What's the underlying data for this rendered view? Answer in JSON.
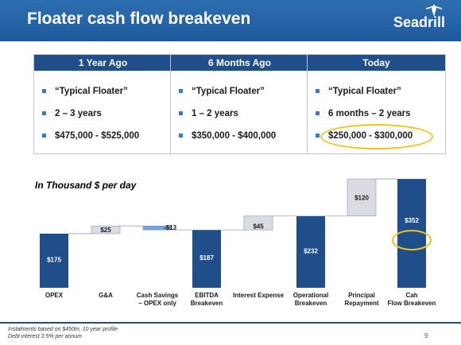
{
  "slide": {
    "title": "Floater cash flow breakeven",
    "logo": "Seadrill",
    "page_number": "9"
  },
  "boxes": [
    {
      "header": "1 Year Ago",
      "items": [
        "“Typical Floater”",
        "2 – 3 years",
        "$475,000 - $525,000"
      ]
    },
    {
      "header": "6 Months Ago",
      "items": [
        "“Typical Floater”",
        "1 – 2 years",
        "$350,000 - $400,000"
      ]
    },
    {
      "header": "Today",
      "items": [
        "“Typical Floater”",
        "6 months – 2 years",
        "$250,000 - $300,000"
      ]
    }
  ],
  "colors": {
    "header_bar": "#1f4e8a",
    "total_bar": "#1f4e8a",
    "delta_bar": "#d9dde3",
    "small_bar": "#6fa6d8",
    "highlight": "#f0c41c"
  },
  "chart_data": {
    "type": "bar",
    "subtitle": "In Thousand $ per day",
    "categories": [
      "OPEX",
      "G&A",
      "Cash Savings – OPEX only",
      "EBITDA Breakeven",
      "Interest Expense",
      "Operational Breakeven",
      "Principal Repayment",
      "Cah Flow Breakeven"
    ],
    "values": [
      175,
      25,
      -13,
      187,
      45,
      232,
      120,
      352
    ],
    "labels": [
      "$175",
      "$25",
      "-$13",
      "$187",
      "$45",
      "$232",
      "$120",
      "$352"
    ],
    "kinds": [
      "total",
      "delta",
      "delta",
      "total",
      "delta",
      "total",
      "delta",
      "total"
    ],
    "highlighted": [
      "$352"
    ]
  },
  "footer": {
    "note_1": "Instalments based on $450m, 10 year profile",
    "note_2": "Debt interest 3.5% per annum"
  }
}
